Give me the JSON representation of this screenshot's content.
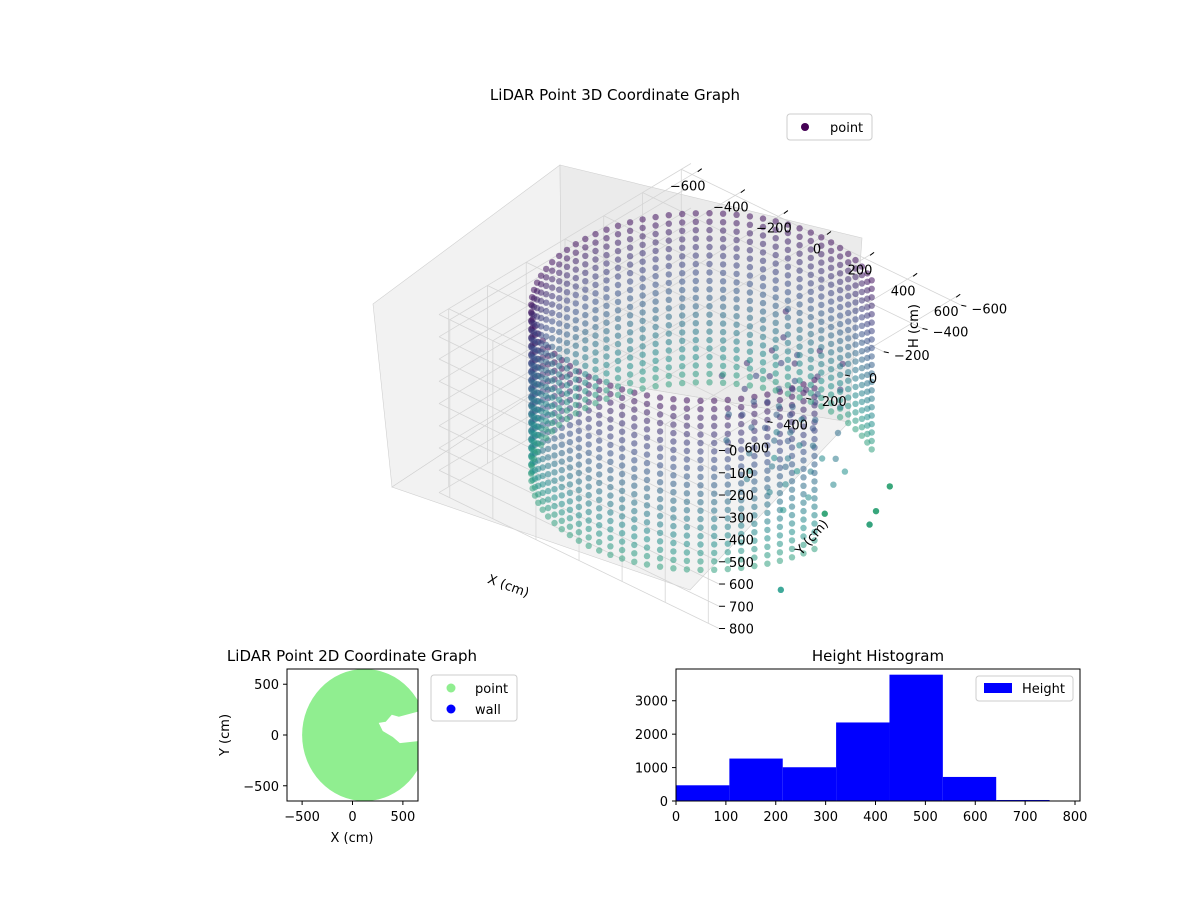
{
  "chart_data": [
    {
      "type": "scatter",
      "projection": "3d",
      "title": "LiDAR Point 3D Coordinate Graph",
      "xlabel": "X (cm)",
      "ylabel": "Y (cm)",
      "zlabel": "H (cm)",
      "xlim": [
        -650,
        650
      ],
      "ylim": [
        -650,
        650
      ],
      "zlim": [
        800,
        0
      ],
      "xticks": [
        -600,
        -400,
        -200,
        0,
        200,
        400,
        600
      ],
      "yticks": [
        -600,
        -400,
        -200,
        0,
        200,
        400,
        600
      ],
      "zticks": [
        0,
        100,
        200,
        300,
        400,
        500,
        600,
        700,
        800
      ],
      "grid": true,
      "legend": {
        "placement": "top-right",
        "entries": [
          {
            "name": "point",
            "color": "#440154"
          }
        ]
      },
      "colormap": "viridis",
      "shape": "cylindrical wall of radius about 600 cm and height 0 to 800 cm with a gap on the +X side",
      "ring_radius": 600,
      "gap_angle_range_deg": [
        -55,
        5
      ],
      "outliers": [
        {
          "x": 620,
          "y": -160,
          "h": 770
        },
        {
          "x": 560,
          "y": -260,
          "h": 790
        },
        {
          "x": 480,
          "y": -420,
          "h": 800
        },
        {
          "x": 430,
          "y": -140,
          "h": 800
        }
      ]
    },
    {
      "type": "scatter",
      "title": "LiDAR Point 2D Coordinate Graph",
      "xlabel": "X (cm)",
      "ylabel": "Y (cm)",
      "xlim": [
        -650,
        650
      ],
      "ylim": [
        -650,
        650
      ],
      "xticks": [
        -500,
        0,
        500
      ],
      "yticks": [
        -500,
        0,
        500
      ],
      "legend": {
        "placement": "outside-right",
        "entries": [
          {
            "name": "point",
            "color": "#90ee90"
          },
          {
            "name": "wall",
            "color": "#0000ff"
          }
        ]
      },
      "shape": "filled disc of radius about 620 cm centered near the origin with a notch on the +X side"
    },
    {
      "type": "bar",
      "title": "Height Histogram",
      "xlabel": "",
      "ylabel": "",
      "xlim": [
        0,
        810
      ],
      "ylim": [
        0,
        3950
      ],
      "xticks": [
        0,
        100,
        200,
        300,
        400,
        500,
        600,
        700,
        800
      ],
      "yticks": [
        0,
        1000,
        2000,
        3000
      ],
      "bin_edges": [
        0,
        107,
        214,
        321,
        428,
        535,
        642,
        749
      ],
      "series": [
        {
          "name": "Height",
          "color": "#0000ff",
          "values": [
            470,
            1270,
            1010,
            2350,
            3780,
            720,
            30
          ]
        }
      ],
      "legend": {
        "placement": "top-right"
      }
    }
  ]
}
